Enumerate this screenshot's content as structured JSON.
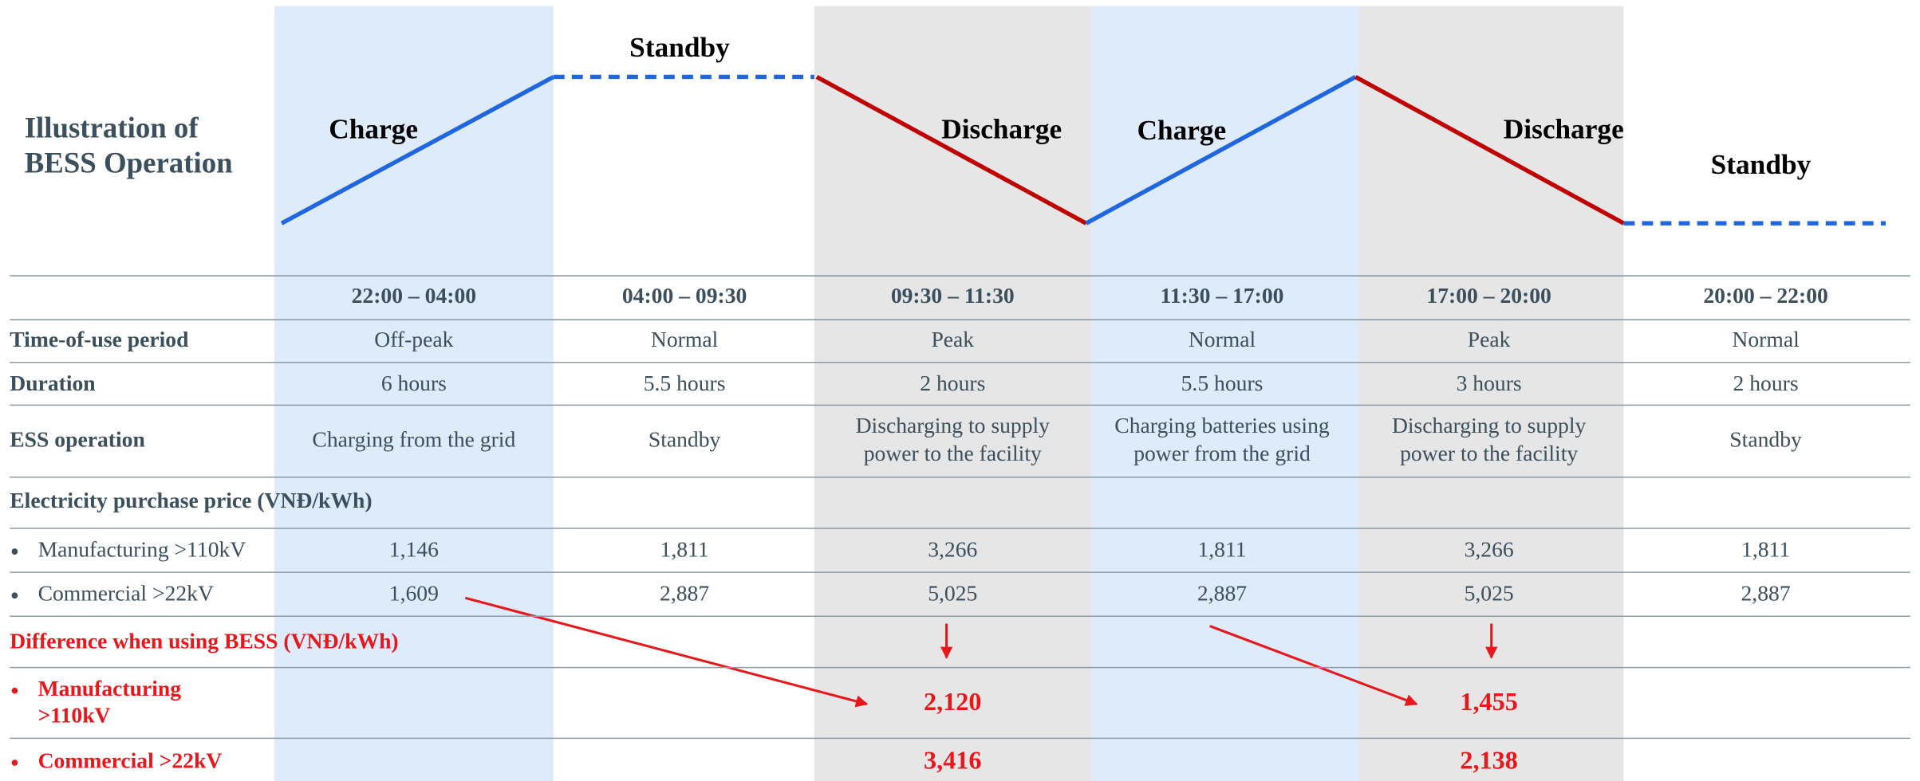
{
  "title": [
    "Illustration of",
    "BESS Operation"
  ],
  "phases": [
    "Charge",
    "Standby",
    "Discharge",
    "Charge",
    "Discharge",
    "Standby"
  ],
  "row_labels": {
    "time_of_use": "Time-of-use period",
    "duration": "Duration",
    "operation": "ESS operation",
    "price_heading": "Electricity purchase price (VNĐ/kWh)",
    "manufacturing": "Manufacturing >110kV",
    "commercial": "Commercial >22kV",
    "difference_heading": "Difference when using BESS (VNĐ/kWh)",
    "manufacturing_diff": [
      "Manufacturing",
      ">110kV"
    ],
    "commercial_diff": "Commercial >22kV"
  },
  "columns": [
    {
      "time": "22:00 – 04:00",
      "tou": "Off-peak",
      "duration": "6 hours",
      "operation": [
        "Charging from the grid"
      ],
      "manufacturing_price": "1,146",
      "commercial_price": "1,609",
      "manufacturing_diff": null,
      "commercial_diff": null
    },
    {
      "time": "04:00 – 09:30",
      "tou": "Normal",
      "duration": "5.5 hours",
      "operation": [
        "Standby"
      ],
      "manufacturing_price": "1,811",
      "commercial_price": "2,887",
      "manufacturing_diff": null,
      "commercial_diff": null
    },
    {
      "time": "09:30 – 11:30",
      "tou": "Peak",
      "duration": "2 hours",
      "operation": [
        "Discharging to supply",
        "power to the facility"
      ],
      "manufacturing_price": "3,266",
      "commercial_price": "5,025",
      "manufacturing_diff": "2,120",
      "commercial_diff": "3,416"
    },
    {
      "time": "11:30 – 17:00",
      "tou": "Normal",
      "duration": "5.5 hours",
      "operation": [
        "Charging batteries using",
        "power from the grid"
      ],
      "manufacturing_price": "1,811",
      "commercial_price": "2,887",
      "manufacturing_diff": null,
      "commercial_diff": null
    },
    {
      "time": "17:00 – 20:00",
      "tou": "Peak",
      "duration": "3 hours",
      "operation": [
        "Discharging to supply",
        "power to the facility"
      ],
      "manufacturing_price": "3,266",
      "commercial_price": "5,025",
      "manufacturing_diff": "1,455",
      "commercial_diff": "2,138"
    },
    {
      "time": "20:00 – 22:00",
      "tou": "Normal",
      "duration": "2 hours",
      "operation": [
        "Standby"
      ],
      "manufacturing_price": "1,811",
      "commercial_price": "2,887",
      "manufacturing_diff": null,
      "commercial_diff": null
    }
  ]
}
